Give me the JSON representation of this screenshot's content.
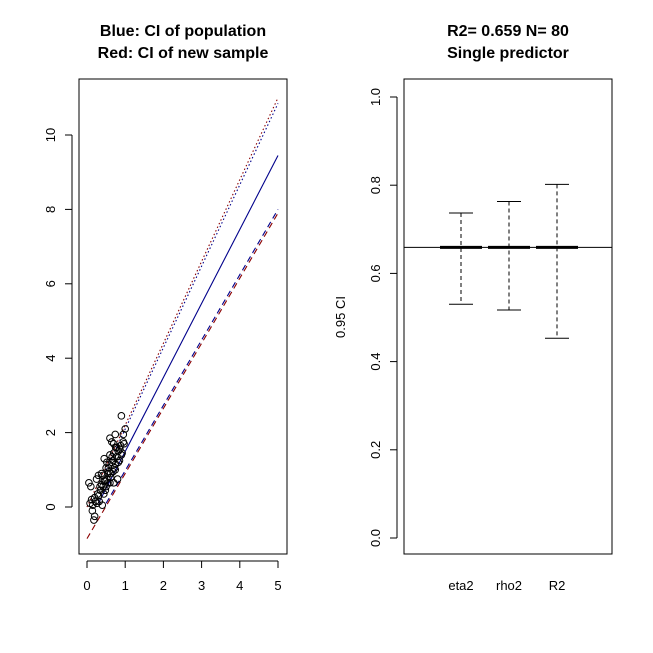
{
  "chart_data": [
    {
      "type": "scatter",
      "title": "Blue: CI of population",
      "subtitle": "Red: CI of new sample",
      "xlabel": "",
      "ylabel": "",
      "xlim": [
        0,
        5
      ],
      "ylim": [
        -1,
        11
      ],
      "x_ticks": [
        "0",
        "1",
        "2",
        "3",
        "4",
        "5"
      ],
      "y_ticks": [
        "0",
        "2",
        "4",
        "6",
        "8",
        "10"
      ],
      "colors": {
        "points": "#000000",
        "fit": "#00008b",
        "population_ci": "#00008b",
        "sample_ci": "#8b0000"
      },
      "lines": [
        {
          "name": "",
          "style": "solid",
          "color": "#00008b",
          "x": [
            0.3,
            5
          ],
          "y": [
            0.1,
            9.45
          ]
        },
        {
          "name": "",
          "style": "dotted",
          "color": "#00008b",
          "x": [
            0.5,
            5
          ],
          "y": [
            1.0,
            10.85
          ]
        },
        {
          "name": "",
          "style": "dashed",
          "color": "#00008b",
          "x": [
            0.5,
            5
          ],
          "y": [
            0.1,
            8.0
          ]
        },
        {
          "name": "",
          "style": "dotted",
          "color": "#8b0000",
          "x": [
            0,
            5
          ],
          "y": [
            0.0,
            11.0
          ]
        },
        {
          "name": "",
          "style": "dashed",
          "color": "#8b0000",
          "x": [
            0,
            5
          ],
          "y": [
            -0.85,
            7.9
          ]
        }
      ],
      "points": [
        [
          0.05,
          0.65
        ],
        [
          0.1,
          0.55
        ],
        [
          0.12,
          0.2
        ],
        [
          0.15,
          0.05
        ],
        [
          0.18,
          -0.35
        ],
        [
          0.2,
          -0.25
        ],
        [
          0.22,
          0.15
        ],
        [
          0.25,
          0.75
        ],
        [
          0.28,
          0.35
        ],
        [
          0.3,
          0.85
        ],
        [
          0.32,
          0.15
        ],
        [
          0.35,
          0.45
        ],
        [
          0.38,
          0.6
        ],
        [
          0.4,
          0.05
        ],
        [
          0.42,
          0.85
        ],
        [
          0.45,
          0.7
        ],
        [
          0.45,
          1.3
        ],
        [
          0.48,
          0.45
        ],
        [
          0.5,
          0.55
        ],
        [
          0.5,
          1.05
        ],
        [
          0.52,
          0.75
        ],
        [
          0.55,
          0.65
        ],
        [
          0.55,
          0.9
        ],
        [
          0.58,
          1.15
        ],
        [
          0.6,
          1.4
        ],
        [
          0.6,
          1.85
        ],
        [
          0.62,
          0.8
        ],
        [
          0.65,
          1.2
        ],
        [
          0.65,
          1.75
        ],
        [
          0.68,
          0.95
        ],
        [
          0.7,
          0.65
        ],
        [
          0.7,
          1.45
        ],
        [
          0.72,
          1.05
        ],
        [
          0.75,
          1.6
        ],
        [
          0.75,
          1.15
        ],
        [
          0.78,
          1.35
        ],
        [
          0.8,
          0.75
        ],
        [
          0.82,
          1.5
        ],
        [
          0.85,
          1.25
        ],
        [
          0.88,
          1.65
        ],
        [
          0.9,
          2.45
        ],
        [
          0.92,
          1.45
        ],
        [
          0.95,
          1.75
        ],
        [
          1.0,
          2.1
        ],
        [
          0.08,
          0.1
        ],
        [
          0.14,
          -0.1
        ],
        [
          0.26,
          0.1
        ],
        [
          0.34,
          0.55
        ],
        [
          0.44,
          0.35
        ],
        [
          0.56,
          1.05
        ],
        [
          0.66,
          1.35
        ],
        [
          0.74,
          1.95
        ],
        [
          0.86,
          1.55
        ],
        [
          0.97,
          1.7
        ],
        [
          0.2,
          0.25
        ],
        [
          0.38,
          0.9
        ],
        [
          0.48,
          0.7
        ],
        [
          0.58,
          0.95
        ],
        [
          0.68,
          1.25
        ],
        [
          0.78,
          1.6
        ],
        [
          0.9,
          1.4
        ],
        [
          0.3,
          0.3
        ],
        [
          0.42,
          0.55
        ],
        [
          0.6,
          0.65
        ],
        [
          0.7,
          1.7
        ],
        [
          0.82,
          1.2
        ],
        [
          0.95,
          1.95
        ],
        [
          0.52,
          1.2
        ],
        [
          0.62,
          0.9
        ],
        [
          0.74,
          1.0
        ]
      ]
    },
    {
      "type": "error_bar",
      "title": "R2= 0.659 N= 80",
      "subtitle": "Single predictor",
      "xlabel": "",
      "ylabel": "0.95 CI",
      "ylim": [
        0.0,
        1.0
      ],
      "y_ticks": [
        "0.0",
        "0.2",
        "0.4",
        "0.6",
        "0.8",
        "1.0"
      ],
      "categories": [
        "eta2",
        "rho2",
        "R2"
      ],
      "estimate": [
        0.659,
        0.659,
        0.659
      ],
      "lower": [
        0.53,
        0.517,
        0.453
      ],
      "upper": [
        0.737,
        0.763,
        0.802
      ],
      "reference_line": 0.659,
      "colors": {
        "axis": "#000000"
      }
    }
  ]
}
